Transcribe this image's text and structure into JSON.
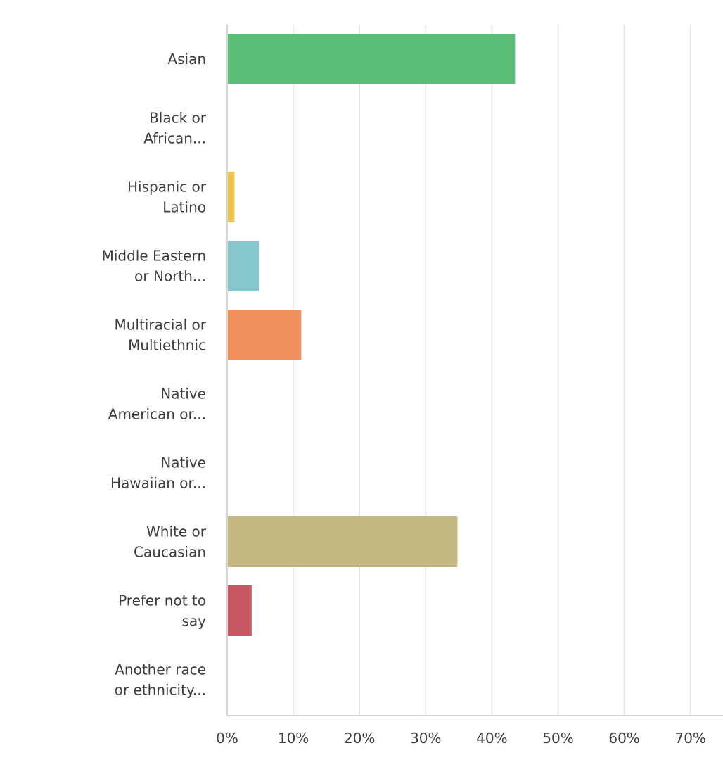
{
  "chart_data": {
    "type": "bar",
    "orientation": "horizontal",
    "categories": [
      [
        "Asian"
      ],
      [
        "Black or",
        "African..."
      ],
      [
        "Hispanic or",
        "Latino"
      ],
      [
        "Middle Eastern",
        "or North..."
      ],
      [
        "Multiracial or",
        "Multiethnic"
      ],
      [
        "Native",
        "American or..."
      ],
      [
        "Native",
        "Hawaiian or..."
      ],
      [
        "White or",
        "Caucasian"
      ],
      [
        "Prefer not to",
        "say"
      ],
      [
        "Another race",
        "or ethnicity..."
      ]
    ],
    "values": [
      43.5,
      0,
      1.1,
      4.8,
      11.2,
      0,
      0,
      34.8,
      3.7,
      0
    ],
    "unit": "%",
    "colors": [
      "#5bbd77",
      "#5bbd77",
      "#efc24a",
      "#86c7cd",
      "#ef905d",
      "#5bbd77",
      "#5bbd77",
      "#c4b882",
      "#c95761",
      "#5bbd77"
    ],
    "xlim": [
      0,
      75
    ],
    "ticks": [
      0,
      10,
      20,
      30,
      40,
      50,
      60,
      70
    ],
    "tick_labels": [
      "0%",
      "10%",
      "20%",
      "30%",
      "40%",
      "50%",
      "60%",
      "70%"
    ],
    "grid": true,
    "title": "",
    "xlabel": "",
    "ylabel": ""
  }
}
